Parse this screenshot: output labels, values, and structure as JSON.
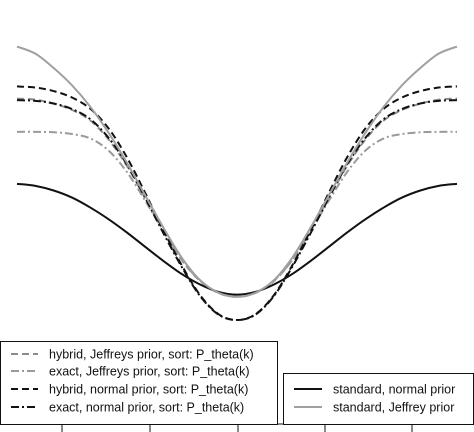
{
  "chart_data": {
    "type": "line",
    "title": "",
    "xlabel": "",
    "ylabel": "",
    "grid": false,
    "xlim": [
      -3,
      3
    ],
    "ylim": [
      0,
      1.4
    ],
    "x": [
      -3.0,
      -2.75,
      -2.5,
      -2.25,
      -2.0,
      -1.75,
      -1.5,
      -1.25,
      -1.0,
      -0.75,
      -0.5,
      -0.25,
      0.0,
      0.25,
      0.5,
      0.75,
      1.0,
      1.25,
      1.5,
      1.75,
      2.0,
      2.25,
      2.5,
      2.75,
      3.0
    ],
    "series": [
      {
        "name": "hybrid, Jeffreys prior, sort: P_theta(k)",
        "color": "#8c8c8c",
        "dash": "7,4",
        "values": [
          1.045,
          1.04,
          1.022,
          0.994,
          0.946,
          0.86,
          0.74,
          0.595,
          0.45,
          0.315,
          0.22,
          0.167,
          0.15,
          0.167,
          0.22,
          0.315,
          0.45,
          0.595,
          0.74,
          0.86,
          0.946,
          0.994,
          1.022,
          1.04,
          1.045
        ]
      },
      {
        "name": "exact, Jeffreys prior, sort: P_theta(k)",
        "color": "#9a9a9a",
        "dash": "8,3,2,3",
        "values": [
          0.895,
          0.895,
          0.893,
          0.885,
          0.865,
          0.81,
          0.713,
          0.583,
          0.445,
          0.315,
          0.222,
          0.168,
          0.15,
          0.168,
          0.222,
          0.315,
          0.445,
          0.583,
          0.713,
          0.81,
          0.865,
          0.885,
          0.893,
          0.895,
          0.895
        ]
      },
      {
        "name": "hybrid, normal prior, sort: P_theta(k)",
        "color": "#111111",
        "dash": "7,4",
        "values": [
          1.1,
          1.095,
          1.079,
          1.05,
          0.999,
          0.91,
          0.779,
          0.618,
          0.448,
          0.29,
          0.156,
          0.071,
          0.045,
          0.071,
          0.156,
          0.29,
          0.448,
          0.618,
          0.779,
          0.91,
          0.999,
          1.05,
          1.079,
          1.095,
          1.1
        ]
      },
      {
        "name": "exact, normal prior, sort: P_theta(k)",
        "color": "#111111",
        "dash": "8,3,2,3",
        "values": [
          1.038,
          1.035,
          1.023,
          0.998,
          0.952,
          0.867,
          0.747,
          0.596,
          0.435,
          0.283,
          0.152,
          0.069,
          0.045,
          0.069,
          0.152,
          0.283,
          0.435,
          0.596,
          0.747,
          0.867,
          0.952,
          0.998,
          1.023,
          1.035,
          1.038
        ]
      },
      {
        "name": "standard, normal prior",
        "color": "#111111",
        "dash": "",
        "values": [
          0.66,
          0.651,
          0.63,
          0.598,
          0.553,
          0.5,
          0.44,
          0.375,
          0.311,
          0.252,
          0.205,
          0.172,
          0.16,
          0.172,
          0.205,
          0.252,
          0.311,
          0.375,
          0.44,
          0.5,
          0.553,
          0.598,
          0.63,
          0.651,
          0.66
        ]
      },
      {
        "name": "standard, Jeffrey prior",
        "color": "#a0a0a0",
        "dash": "",
        "values": [
          1.28,
          1.248,
          1.183,
          1.105,
          1.008,
          0.89,
          0.755,
          0.607,
          0.46,
          0.325,
          0.224,
          0.168,
          0.15,
          0.168,
          0.224,
          0.325,
          0.46,
          0.607,
          0.755,
          0.89,
          1.008,
          1.105,
          1.183,
          1.248,
          1.28
        ]
      }
    ],
    "legends": [
      {
        "placement": "bottom-left",
        "entries": [
          0,
          1,
          2,
          3
        ]
      },
      {
        "placement": "bottom-right",
        "entries": [
          4,
          5
        ]
      }
    ]
  }
}
